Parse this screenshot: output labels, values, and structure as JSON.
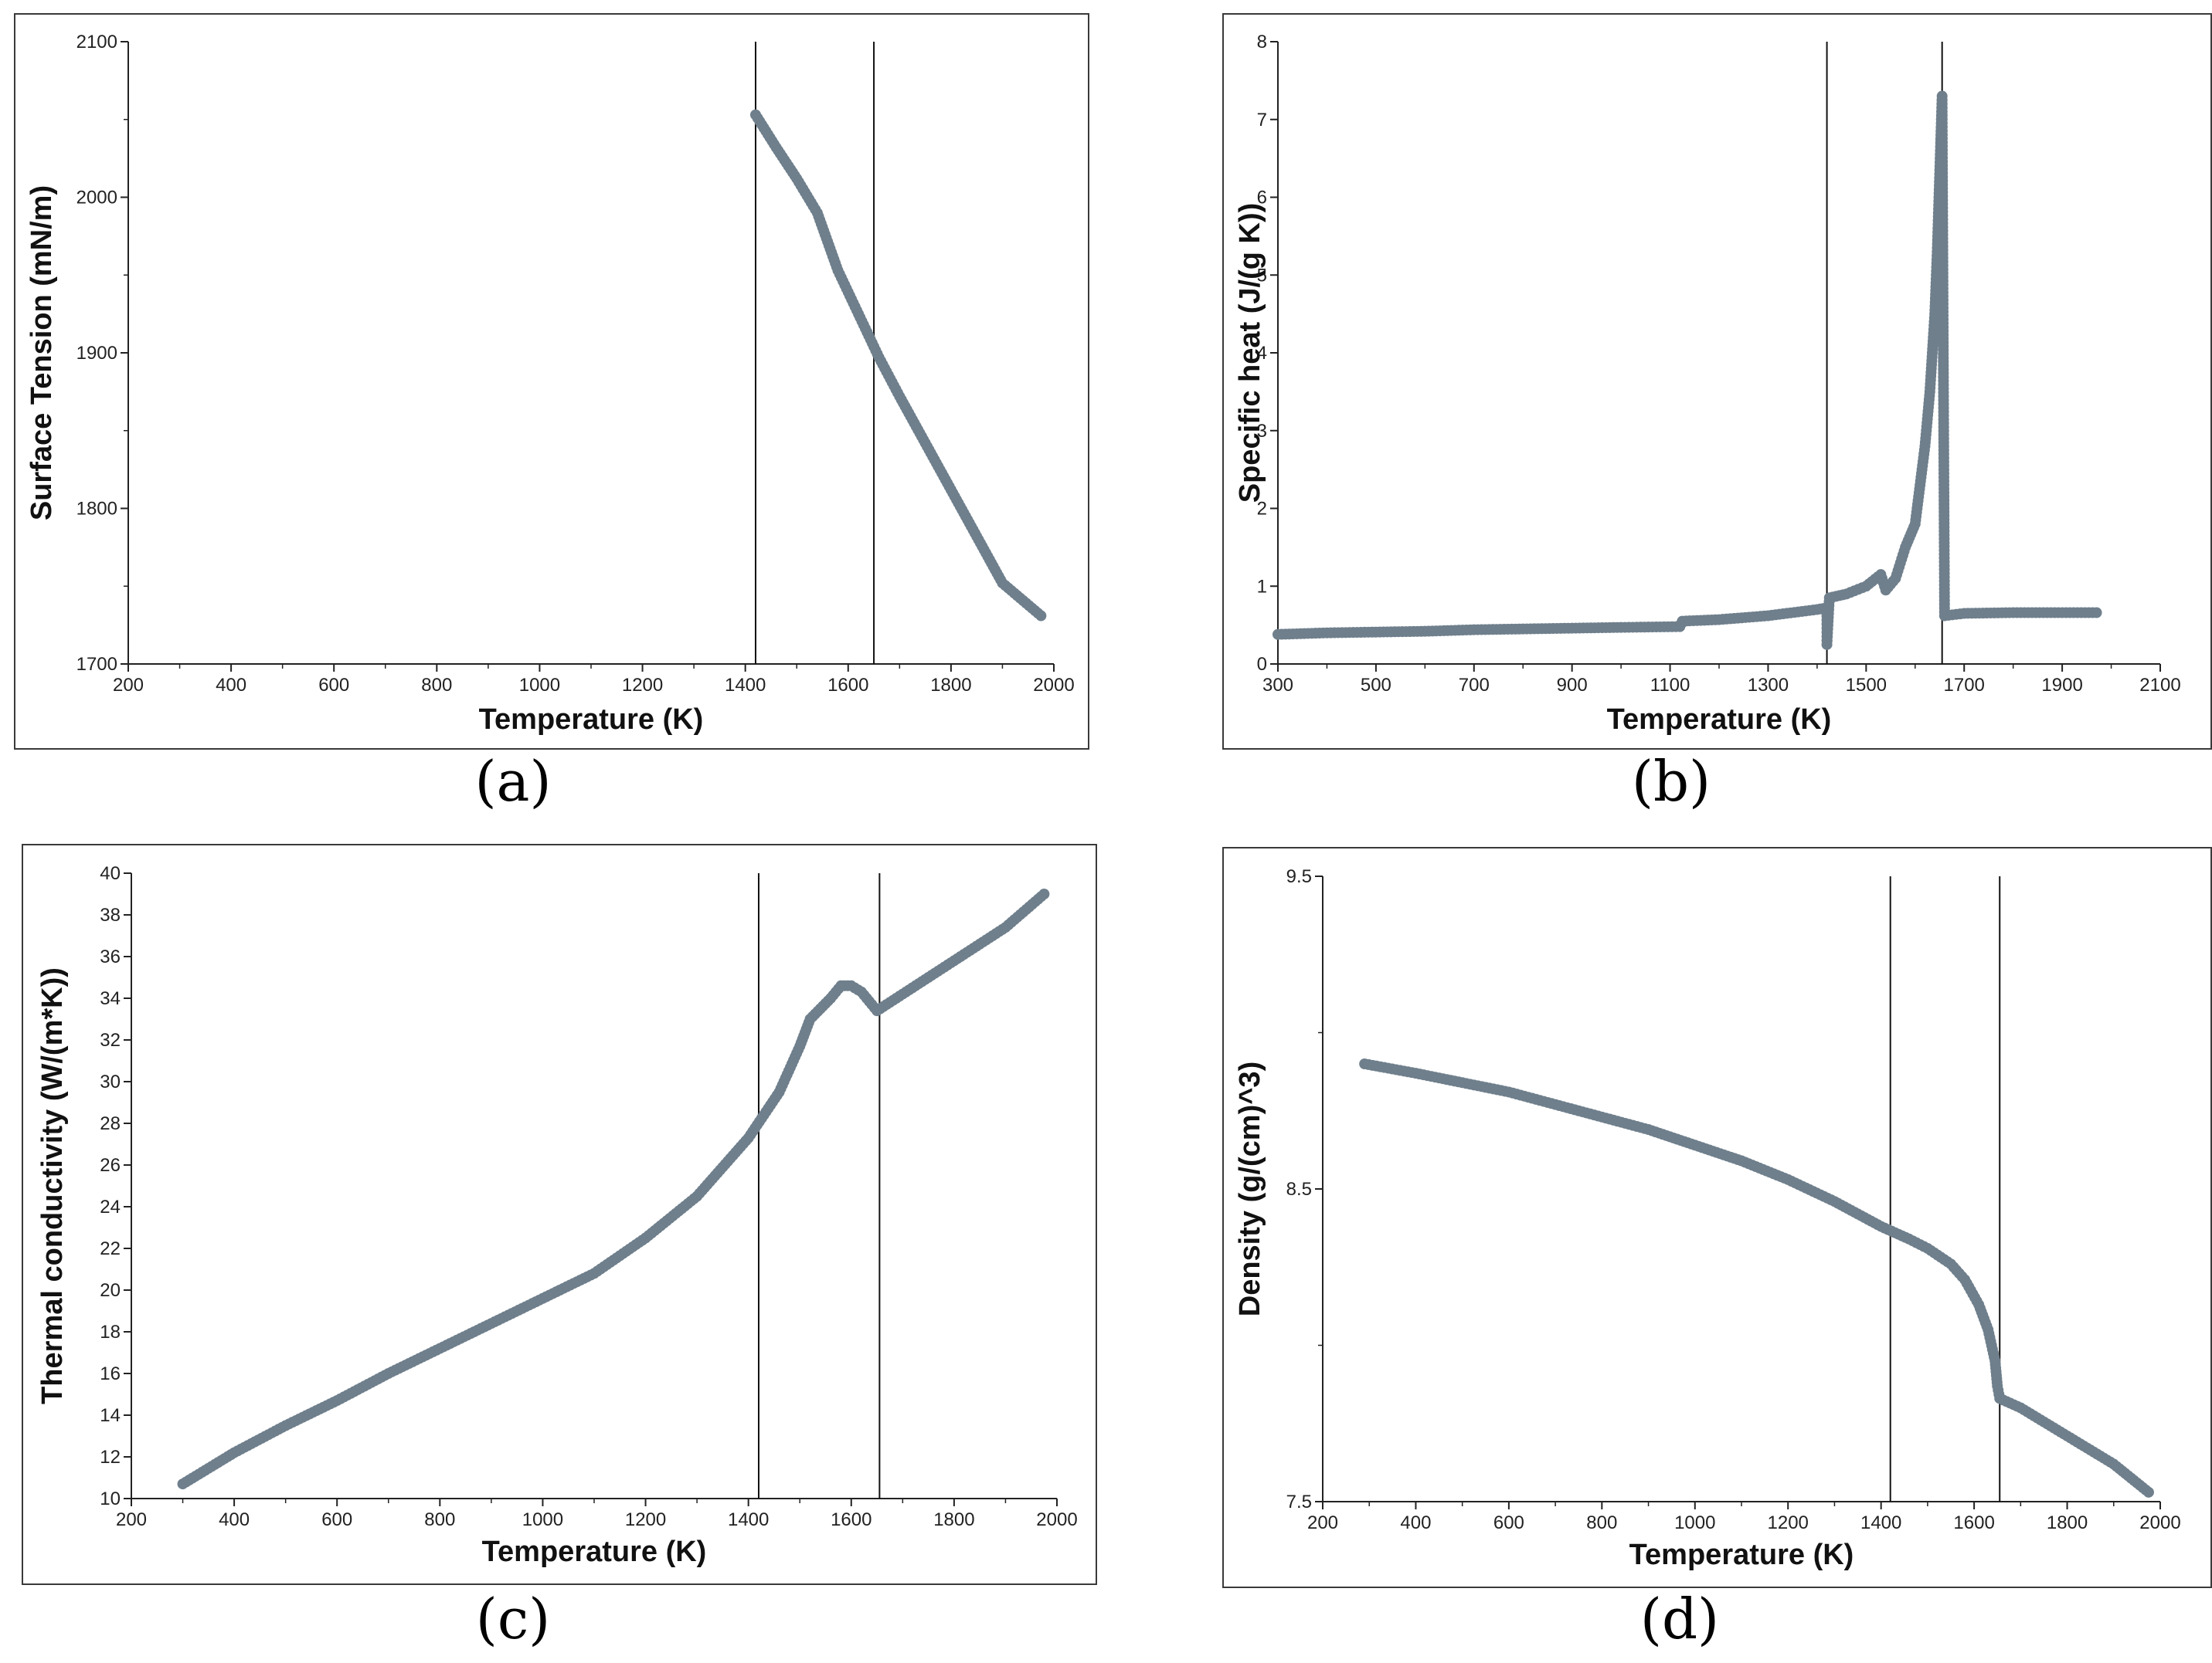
{
  "colors": {
    "marker": "#6f7f8c",
    "axis": "#222222",
    "frame": "#3a3a3a"
  },
  "captions": {
    "a": "(a)",
    "b": "(b)",
    "c": "(c)",
    "d": "(d)"
  },
  "chart_data": [
    {
      "type": "scatter",
      "panel": "a",
      "title": "",
      "xlabel": "Temperature (K)",
      "ylabel": "Surface Tension (mN/m)",
      "xlim": [
        200,
        2000
      ],
      "ylim": [
        1700,
        2100
      ],
      "xticks": [
        200,
        400,
        600,
        800,
        1000,
        1200,
        1400,
        1600,
        1800,
        2000
      ],
      "yticks": [
        1700,
        1800,
        1900,
        2000,
        2100
      ],
      "vlines": [
        1420,
        1650
      ],
      "series": [
        {
          "name": "Surface Tension",
          "points": [
            [
              1420,
              2053
            ],
            [
              1460,
              2032
            ],
            [
              1500,
              2012
            ],
            [
              1540,
              1990
            ],
            [
              1580,
              1953
            ],
            [
              1620,
              1925
            ],
            [
              1660,
              1897
            ],
            [
              1700,
              1872
            ],
            [
              1750,
              1842
            ],
            [
              1800,
              1812
            ],
            [
              1850,
              1782
            ],
            [
              1900,
              1752
            ],
            [
              1975,
              1731
            ]
          ]
        }
      ]
    },
    {
      "type": "scatter",
      "panel": "b",
      "title": "",
      "xlabel": "Temperature (K)",
      "ylabel": "Specific heat (J/(g K))",
      "xlim": [
        300,
        2100
      ],
      "ylim": [
        0,
        8
      ],
      "xticks": [
        300,
        500,
        700,
        900,
        1100,
        1300,
        1500,
        1700,
        1900,
        2100
      ],
      "yticks": [
        0,
        1,
        2,
        3,
        4,
        5,
        6,
        7,
        8
      ],
      "vlines": [
        1420,
        1655
      ],
      "series": [
        {
          "name": "Specific heat",
          "points": [
            [
              300,
              0.38
            ],
            [
              400,
              0.4
            ],
            [
              500,
              0.41
            ],
            [
              600,
              0.42
            ],
            [
              700,
              0.44
            ],
            [
              800,
              0.45
            ],
            [
              900,
              0.46
            ],
            [
              1000,
              0.47
            ],
            [
              1120,
              0.48
            ],
            [
              1125,
              0.55
            ],
            [
              1200,
              0.57
            ],
            [
              1300,
              0.62
            ],
            [
              1400,
              0.7
            ],
            [
              1420,
              0.72
            ],
            [
              1420,
              0.25
            ],
            [
              1425,
              0.85
            ],
            [
              1460,
              0.9
            ],
            [
              1500,
              1.0
            ],
            [
              1530,
              1.15
            ],
            [
              1540,
              0.95
            ],
            [
              1560,
              1.1
            ],
            [
              1580,
              1.5
            ],
            [
              1600,
              1.8
            ],
            [
              1620,
              2.8
            ],
            [
              1630,
              3.5
            ],
            [
              1640,
              4.5
            ],
            [
              1645,
              5.3
            ],
            [
              1650,
              6.3
            ],
            [
              1655,
              7.3
            ],
            [
              1660,
              0.62
            ],
            [
              1700,
              0.65
            ],
            [
              1800,
              0.66
            ],
            [
              1900,
              0.66
            ],
            [
              1970,
              0.66
            ]
          ]
        }
      ]
    },
    {
      "type": "scatter",
      "panel": "c",
      "title": "",
      "xlabel": "Temperature (K)",
      "ylabel": "Thermal conductivity (W/(m*K))",
      "xlim": [
        200,
        2000
      ],
      "ylim": [
        10,
        40
      ],
      "xticks": [
        200,
        400,
        600,
        800,
        1000,
        1200,
        1400,
        1600,
        1800,
        2000
      ],
      "yticks": [
        10,
        12,
        14,
        16,
        18,
        20,
        22,
        24,
        26,
        28,
        30,
        32,
        34,
        36,
        38,
        40
      ],
      "vlines": [
        1420,
        1655
      ],
      "series": [
        {
          "name": "Thermal conductivity",
          "points": [
            [
              300,
              10.7
            ],
            [
              400,
              12.2
            ],
            [
              500,
              13.5
            ],
            [
              600,
              14.7
            ],
            [
              700,
              16.0
            ],
            [
              800,
              17.2
            ],
            [
              900,
              18.4
            ],
            [
              1000,
              19.6
            ],
            [
              1100,
              20.8
            ],
            [
              1200,
              22.5
            ],
            [
              1300,
              24.5
            ],
            [
              1400,
              27.3
            ],
            [
              1460,
              29.5
            ],
            [
              1500,
              31.7
            ],
            [
              1520,
              33.0
            ],
            [
              1560,
              34.0
            ],
            [
              1580,
              34.6
            ],
            [
              1600,
              34.6
            ],
            [
              1620,
              34.3
            ],
            [
              1650,
              33.4
            ],
            [
              1700,
              34.2
            ],
            [
              1800,
              35.8
            ],
            [
              1900,
              37.4
            ],
            [
              1975,
              39.0
            ]
          ]
        }
      ]
    },
    {
      "type": "scatter",
      "panel": "d",
      "title": "",
      "xlabel": "Temperature (K)",
      "ylabel": "Density (g/(cm)^3)",
      "xlim": [
        200,
        2000
      ],
      "ylim": [
        7.5,
        9.5
      ],
      "xticks": [
        200,
        400,
        600,
        800,
        1000,
        1200,
        1400,
        1600,
        1800,
        2000
      ],
      "yticks": [
        7.5,
        8.5,
        9.5
      ],
      "vlines": [
        1420,
        1655
      ],
      "series": [
        {
          "name": "Density",
          "points": [
            [
              290,
              8.9
            ],
            [
              400,
              8.87
            ],
            [
              500,
              8.84
            ],
            [
              600,
              8.81
            ],
            [
              700,
              8.77
            ],
            [
              800,
              8.73
            ],
            [
              900,
              8.69
            ],
            [
              1000,
              8.64
            ],
            [
              1100,
              8.59
            ],
            [
              1200,
              8.53
            ],
            [
              1300,
              8.46
            ],
            [
              1400,
              8.38
            ],
            [
              1460,
              8.34
            ],
            [
              1500,
              8.31
            ],
            [
              1550,
              8.26
            ],
            [
              1580,
              8.21
            ],
            [
              1610,
              8.13
            ],
            [
              1630,
              8.05
            ],
            [
              1645,
              7.95
            ],
            [
              1650,
              7.87
            ],
            [
              1655,
              7.83
            ],
            [
              1700,
              7.8
            ],
            [
              1800,
              7.71
            ],
            [
              1900,
              7.62
            ],
            [
              1975,
              7.53
            ]
          ]
        }
      ]
    }
  ]
}
